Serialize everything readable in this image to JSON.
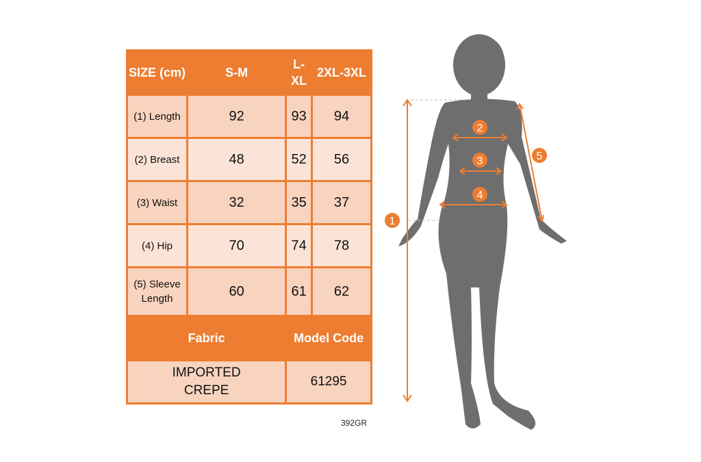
{
  "table": {
    "headers": [
      "SIZE (cm)",
      "S-M",
      "L-XL",
      "2XL-3XL"
    ],
    "rows": [
      {
        "label": "(1) Length",
        "values": [
          "92",
          "93",
          "94"
        ]
      },
      {
        "label": "(2) Breast",
        "values": [
          "48",
          "52",
          "56"
        ]
      },
      {
        "label": "(3) Waist",
        "values": [
          "32",
          "35",
          "37"
        ]
      },
      {
        "label": "(4) Hip",
        "values": [
          "70",
          "74",
          "78"
        ]
      },
      {
        "label": "(5) Sleeve Length",
        "values": [
          "60",
          "61",
          "62"
        ]
      }
    ],
    "footer_headers": [
      "Fabric",
      "Model Code"
    ],
    "footer_values": [
      "IMPORTED CREPE",
      "61295"
    ]
  },
  "product_code": "392GR",
  "markers": [
    "1",
    "2",
    "3",
    "4",
    "5"
  ],
  "colors": {
    "accent": "#ED7D31",
    "silhouette": "#6E6E6E",
    "cell_dark": "#F8D3BE",
    "cell_light": "#FBE4D7"
  }
}
